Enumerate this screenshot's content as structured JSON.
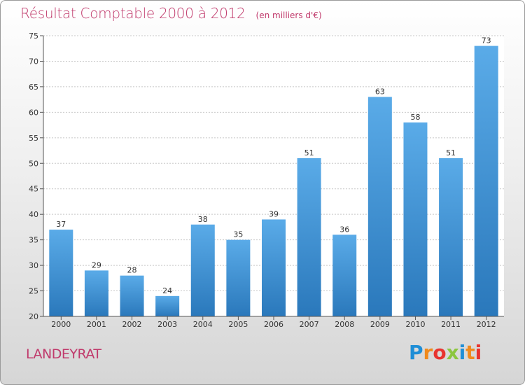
{
  "header": {
    "title": "Résultat Comptable 2000 à 2012",
    "subtitle": "(en milliers d'€)"
  },
  "footer": {
    "commune": "LANDEYRAT",
    "logo_text": "Proxiti"
  },
  "colors": {
    "title": "#c0396b",
    "bar_top": "#5aabe8",
    "bar_bottom": "#2a78bb",
    "logo_letters": [
      "#1f8ed6",
      "#f08a1c",
      "#e8342f",
      "#8cc63e",
      "#1f8ed6",
      "#f08a1c",
      "#e8342f"
    ]
  },
  "chart_data": {
    "type": "bar",
    "categories": [
      "2000",
      "2001",
      "2002",
      "2003",
      "2004",
      "2005",
      "2006",
      "2007",
      "2008",
      "2009",
      "2010",
      "2011",
      "2012"
    ],
    "values": [
      37,
      29,
      28,
      24,
      38,
      35,
      39,
      51,
      36,
      63,
      58,
      51,
      73
    ],
    "ylim": [
      20,
      75
    ],
    "yticks": [
      20,
      25,
      30,
      35,
      40,
      45,
      50,
      55,
      60,
      65,
      70,
      75
    ],
    "grid": true,
    "data_labels": true
  }
}
